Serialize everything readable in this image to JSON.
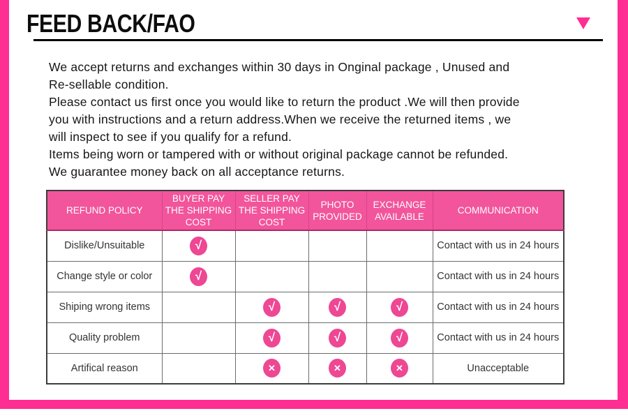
{
  "header": {
    "title": "FEED BACK/FAO"
  },
  "intro": {
    "lines": [
      "We accept returns and exchanges within 30 days in Onginal package , Unused and",
      "Re-sellable condition.",
      "Please contact us first once you would like to return the product .We will then provide",
      "you with instructions and a return address.When we receive the returned items , we",
      "will inspect to see if you qualify for a refund.",
      "Items being worn or tampered with or without original package cannot be refunded.",
      "We guarantee money back on all acceptance returns."
    ]
  },
  "table": {
    "columns": [
      "REFUND POLICY",
      "BUYER PAY THE SHIPPING COST",
      "SELLER PAY THE SHIPPING COST",
      "PHOTO PROVIDED",
      "EXCHANGE AVAILABLE",
      "COMMUNICATION"
    ],
    "rows": [
      {
        "policy": "Dislike/Unsuitable",
        "marks": [
          "check",
          "",
          "",
          ""
        ],
        "communication": "Contact with us in 24 hours"
      },
      {
        "policy": "Change style or color",
        "marks": [
          "check",
          "",
          "",
          ""
        ],
        "communication": "Contact with us in 24 hours"
      },
      {
        "policy": "Shiping wrong items",
        "marks": [
          "",
          "check",
          "check",
          "check"
        ],
        "communication": "Contact with us in 24 hours"
      },
      {
        "policy": "Quality problem",
        "marks": [
          "",
          "check",
          "check",
          "check"
        ],
        "communication": "Contact with us in 24 hours"
      },
      {
        "policy": "Artifical reason",
        "marks": [
          "",
          "cross",
          "cross",
          "cross"
        ],
        "communication": "Unacceptable"
      }
    ]
  },
  "icons": {
    "dropdown": "triangle-down",
    "check_glyph": "√",
    "cross_glyph": "✕"
  },
  "colors": {
    "frame_pink": "#ff2e92",
    "header_pink": "#f2559c",
    "mark_pink": "#ee4794",
    "underline_black": "#000000"
  }
}
